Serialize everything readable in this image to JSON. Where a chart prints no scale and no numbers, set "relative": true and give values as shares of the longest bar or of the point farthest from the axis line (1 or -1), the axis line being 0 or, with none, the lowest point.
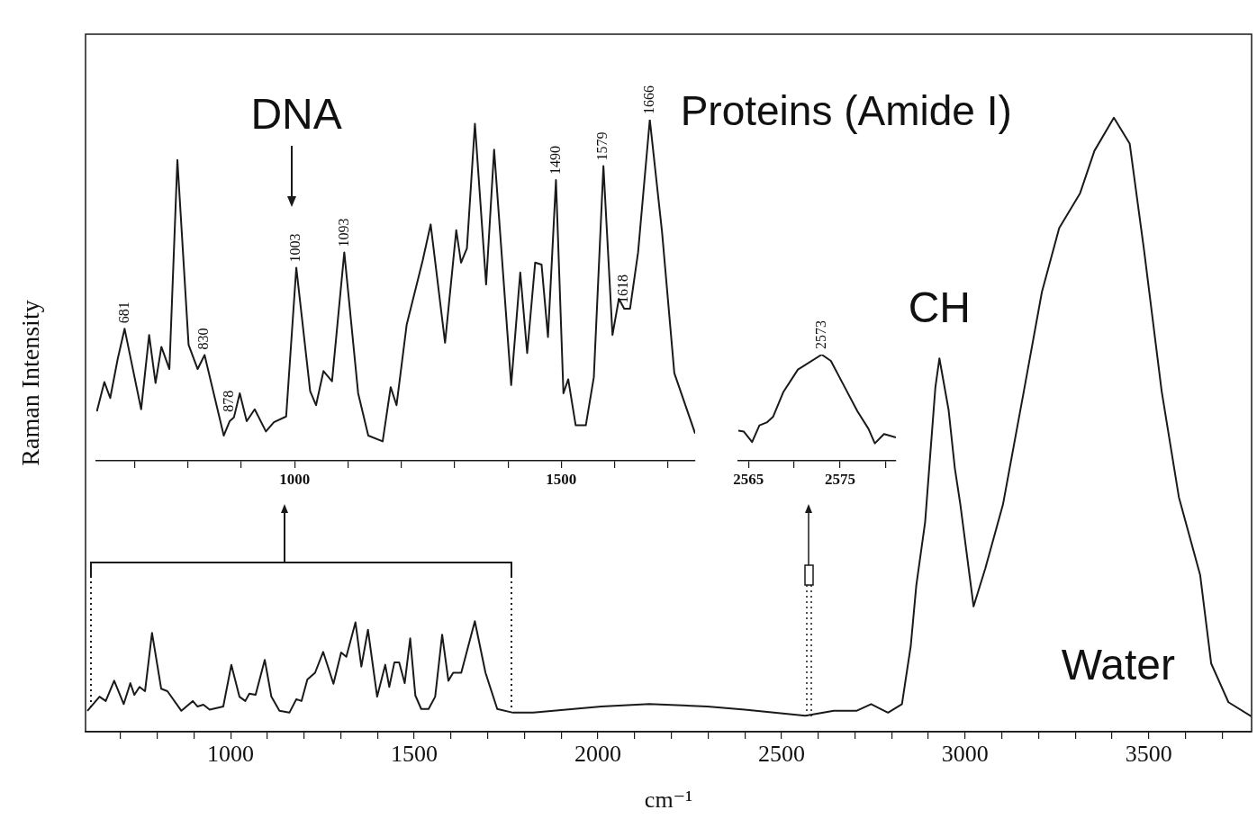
{
  "chart_data": [
    {
      "type": "line",
      "relative": true,
      "xlabel": "cm⁻¹",
      "ylabel": "Raman Intensity",
      "color": "#1a1a1a",
      "x": [
        610,
        643,
        660,
        683,
        709,
        727,
        738,
        752,
        767,
        786,
        811,
        828,
        866,
        897,
        910,
        926,
        943,
        980,
        1002,
        1024,
        1040,
        1051,
        1068,
        1093,
        1111,
        1133,
        1160,
        1179,
        1193,
        1209,
        1230,
        1252,
        1280,
        1301,
        1315,
        1340,
        1356,
        1374,
        1399,
        1421,
        1432,
        1446,
        1459,
        1474,
        1489,
        1503,
        1519,
        1539,
        1557,
        1576,
        1593,
        1606,
        1628,
        1665,
        1694,
        1726,
        1769,
        1824,
        2009,
        2140,
        2298,
        2400,
        2565,
        2642,
        2704,
        2744,
        2790,
        2828,
        2852,
        2867,
        2891,
        2919,
        2930,
        2955,
        2972,
        2987,
        3023,
        3055,
        3103,
        3160,
        3209,
        3256,
        3313,
        3352,
        3405,
        3448,
        3487,
        3535,
        3582,
        3640,
        3670,
        3717,
        3779
      ],
      "values": [
        0.034,
        0.057,
        0.05,
        0.083,
        0.045,
        0.079,
        0.06,
        0.073,
        0.066,
        0.161,
        0.07,
        0.066,
        0.034,
        0.05,
        0.041,
        0.044,
        0.036,
        0.041,
        0.109,
        0.057,
        0.05,
        0.062,
        0.06,
        0.117,
        0.057,
        0.034,
        0.031,
        0.053,
        0.05,
        0.085,
        0.096,
        0.13,
        0.078,
        0.129,
        0.122,
        0.178,
        0.106,
        0.166,
        0.057,
        0.109,
        0.073,
        0.113,
        0.113,
        0.079,
        0.152,
        0.059,
        0.037,
        0.037,
        0.057,
        0.158,
        0.083,
        0.096,
        0.096,
        0.18,
        0.096,
        0.037,
        0.031,
        0.031,
        0.041,
        0.045,
        0.041,
        0.036,
        0.026,
        0.034,
        0.034,
        0.045,
        0.031,
        0.045,
        0.14,
        0.238,
        0.341,
        0.561,
        0.608,
        0.524,
        0.429,
        0.37,
        0.204,
        0.266,
        0.37,
        0.555,
        0.716,
        0.82,
        0.877,
        0.946,
        1,
        0.958,
        0.785,
        0.555,
        0.382,
        0.255,
        0.111,
        0.048,
        0.025
      ],
      "xlim": [
        605,
        3780
      ],
      "xticks": [
        {
          "value": 700,
          "label": null
        },
        {
          "value": 800,
          "label": null
        },
        {
          "value": 900,
          "label": null
        },
        1000,
        {
          "value": 1100,
          "label": null
        },
        {
          "value": 1200,
          "label": null
        },
        {
          "value": 1300,
          "label": null
        },
        {
          "value": 1400,
          "label": null
        },
        1500,
        {
          "value": 1600,
          "label": null
        },
        {
          "value": 1700,
          "label": null
        },
        {
          "value": 1800,
          "label": null
        },
        {
          "value": 1900,
          "label": null
        },
        2000,
        {
          "value": 2100,
          "label": null
        },
        {
          "value": 2200,
          "label": null
        },
        {
          "value": 2300,
          "label": null
        },
        {
          "value": 2400,
          "label": null
        },
        2500,
        {
          "value": 2600,
          "label": null
        },
        {
          "value": 2700,
          "label": null
        },
        {
          "value": 2800,
          "label": null
        },
        {
          "value": 2900,
          "label": null
        },
        3000,
        {
          "value": 3100,
          "label": null
        },
        {
          "value": 3200,
          "label": null
        },
        {
          "value": 3300,
          "label": null
        },
        {
          "value": 3400,
          "label": null
        },
        3500,
        {
          "value": 3600,
          "label": null
        },
        {
          "value": 3700,
          "label": null
        }
      ],
      "annotations": [
        {
          "text": "CH",
          "x": 2930,
          "y": 0.608
        },
        "Water"
      ]
    },
    {
      "type": "line",
      "relative": true,
      "color": "#1a1a1a",
      "x": [
        629,
        643,
        654,
        668,
        681,
        712,
        727,
        739,
        750,
        765,
        780,
        801,
        818,
        831,
        867,
        878,
        886,
        897,
        910,
        925,
        946,
        961,
        984,
        1003,
        1029,
        1040,
        1054,
        1070,
        1093,
        1119,
        1138,
        1165,
        1180,
        1191,
        1210,
        1240,
        1255,
        1282,
        1303,
        1312,
        1323,
        1338,
        1359,
        1374,
        1406,
        1423,
        1436,
        1451,
        1463,
        1475,
        1490,
        1504,
        1513,
        1527,
        1546,
        1561,
        1579,
        1596,
        1608,
        1618,
        1629,
        1644,
        1666,
        1689,
        1712,
        1751
      ],
      "values": [
        0.145,
        0.231,
        0.184,
        0.298,
        0.387,
        0.151,
        0.369,
        0.228,
        0.334,
        0.269,
        0.882,
        0.34,
        0.269,
        0.31,
        0.074,
        0.116,
        0.127,
        0.198,
        0.116,
        0.151,
        0.086,
        0.113,
        0.13,
        0.566,
        0.204,
        0.163,
        0.263,
        0.233,
        0.611,
        0.198,
        0.074,
        0.057,
        0.216,
        0.163,
        0.399,
        0.587,
        0.693,
        0.346,
        0.676,
        0.581,
        0.623,
        0.988,
        0.517,
        0.912,
        0.222,
        0.552,
        0.316,
        0.581,
        0.575,
        0.363,
        0.823,
        0.198,
        0.239,
        0.104,
        0.104,
        0.245,
        0.864,
        0.369,
        0.475,
        0.446,
        0.446,
        0.611,
        1,
        0.67,
        0.257,
        0.08
      ],
      "xlim": [
        628,
        1751
      ],
      "xticks": [
        {
          "value": 700,
          "label": null
        },
        {
          "value": 800,
          "label": null
        },
        {
          "value": 900,
          "label": null
        },
        1000,
        {
          "value": 1100,
          "label": null
        },
        {
          "value": 1200,
          "label": null
        },
        {
          "value": 1300,
          "label": null
        },
        {
          "value": 1400,
          "label": null
        },
        1500,
        {
          "value": 1600,
          "label": null
        },
        {
          "value": 1700,
          "label": null
        }
      ],
      "annotations": [
        "DNA",
        {
          "text": "Proteins (Amide I)",
          "x": 1666,
          "y": 1
        },
        {
          "text": "681",
          "x": 681,
          "y": 0.387
        },
        {
          "text": "830",
          "x": 830,
          "y": 0.31
        },
        {
          "text": "878",
          "x": 878,
          "y": 0.127
        },
        {
          "text": "1003",
          "x": 1003,
          "y": 0.566
        },
        {
          "text": "1093",
          "x": 1093,
          "y": 0.611
        },
        {
          "text": "1490",
          "x": 1490,
          "y": 0.823
        },
        {
          "text": "1579",
          "x": 1579,
          "y": 0.864
        },
        {
          "text": "1618",
          "x": 1618,
          "y": 0.446
        },
        {
          "text": "1666",
          "x": 1666,
          "y": 1
        }
      ]
    },
    {
      "type": "line",
      "relative": true,
      "color": "#1a1a1a",
      "x": [
        2563.9,
        2564.5,
        2565.4,
        2566.2,
        2567,
        2567.7,
        2568.8,
        2570.4,
        2573,
        2574,
        2575.3,
        2576.9,
        2578.1,
        2578.8,
        2579.8,
        2581.1
      ],
      "values": [
        0.285,
        0.275,
        0.177,
        0.334,
        0.361,
        0.416,
        0.646,
        0.859,
        1,
        0.941,
        0.728,
        0.466,
        0.302,
        0.164,
        0.252,
        0.22
      ],
      "xlim": [
        2563.9,
        2581.1
      ],
      "xticks": [
        2565,
        {
          "value": 2570,
          "label": null
        },
        2575,
        {
          "value": 2580,
          "label": null
        }
      ],
      "annotations": [
        {
          "text": "2573",
          "x": 2573,
          "y": 1
        }
      ]
    }
  ]
}
